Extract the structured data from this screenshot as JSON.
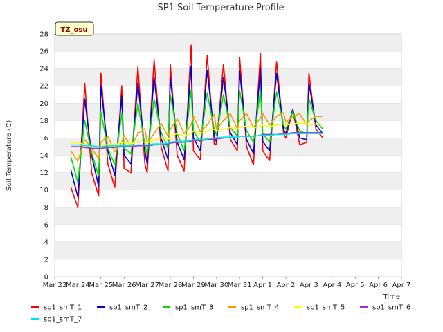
{
  "chart_data": {
    "type": "line",
    "title": "SP1 Soil Temperature Profile",
    "xlabel": "Time",
    "ylabel": "Soil Temperature (C)",
    "annotation": "TZ_osu",
    "ylim": [
      0,
      28
    ],
    "yticks": [
      0,
      2,
      4,
      6,
      8,
      10,
      12,
      14,
      16,
      18,
      20,
      22,
      24,
      26,
      28
    ],
    "xlim": [
      "Mar 23",
      "Apr 7"
    ],
    "xticks": [
      "Mar 23",
      "Mar 24",
      "Mar 25",
      "Mar 26",
      "Mar 27",
      "Mar 28",
      "Mar 29",
      "Mar 30",
      "Mar 31",
      "Apr 1",
      "Apr 2",
      "Apr 3",
      "Apr 4",
      "Apr 5",
      "Apr 6",
      "Apr 7"
    ],
    "grid": "horizontal bands",
    "legend_position": "bottom",
    "x_days": [
      0.7,
      1.0,
      1.3,
      1.6,
      1.9,
      2.0,
      2.3,
      2.6,
      2.9,
      3.0,
      3.3,
      3.6,
      3.9,
      4.0,
      4.3,
      4.6,
      4.9,
      5.0,
      5.3,
      5.6,
      5.9,
      6.0,
      6.3,
      6.6,
      6.9,
      7.0,
      7.3,
      7.6,
      7.9,
      8.0,
      8.3,
      8.6,
      8.9,
      9.0,
      9.3,
      9.6,
      9.9,
      10.0,
      10.3,
      10.6,
      10.9,
      11.0,
      11.3,
      11.6,
      11.9,
      12.0,
      12.3,
      12.6,
      12.9,
      13.0,
      13.3,
      13.6,
      13.9,
      14.0,
      14.3
    ],
    "series": [
      {
        "name": "sp1_smT_1",
        "color": "#ff0000",
        "values": [
          10.3,
          8.0,
          22.3,
          12.0,
          9.3,
          23.5,
          13.0,
          10.3,
          22.0,
          12.5,
          12.0,
          24.2,
          13.0,
          12.0,
          25.0,
          15.0,
          12.2,
          24.5,
          14.0,
          12.2,
          26.7,
          14.5,
          13.5,
          25.5,
          15.3,
          15.3,
          24.5,
          15.8,
          14.5,
          25.3,
          15.0,
          12.9,
          25.8,
          14.5,
          13.4,
          24.8,
          16.5,
          16.0,
          19.2,
          15.2,
          15.5,
          23.5,
          17.0,
          16.0,
          null,
          null,
          null,
          null,
          null,
          null,
          null,
          null,
          null,
          null,
          null
        ]
      },
      {
        "name": "sp1_smT_2",
        "color": "#0000cc",
        "values": [
          12.3,
          9.2,
          20.5,
          14.0,
          10.4,
          22.0,
          14.5,
          11.7,
          20.8,
          14.0,
          13.0,
          22.3,
          14.5,
          13.0,
          23.0,
          16.0,
          13.5,
          23.0,
          15.5,
          13.5,
          24.3,
          16.0,
          14.5,
          23.8,
          16.3,
          15.5,
          23.0,
          16.6,
          15.2,
          23.8,
          15.8,
          14.2,
          24.0,
          15.6,
          14.5,
          23.5,
          17.0,
          16.5,
          19.3,
          16.0,
          15.8,
          22.3,
          17.5,
          16.5,
          null,
          null,
          null,
          null,
          null,
          null,
          null,
          null,
          null,
          null,
          null
        ]
      },
      {
        "name": "sp1_smT_3",
        "color": "#00dd00",
        "values": [
          13.8,
          10.9,
          18.0,
          14.3,
          11.6,
          19.0,
          14.8,
          12.9,
          18.8,
          14.8,
          14.2,
          20.0,
          15.2,
          14.0,
          20.5,
          16.7,
          14.8,
          21.0,
          16.5,
          14.5,
          21.5,
          16.8,
          15.5,
          21.2,
          17.0,
          16.3,
          21.0,
          17.2,
          16.2,
          21.5,
          16.8,
          15.5,
          21.5,
          16.5,
          15.5,
          21.3,
          17.5,
          17.0,
          19.0,
          16.8,
          16.5,
          20.5,
          18.0,
          17.0,
          null,
          null,
          null,
          null,
          null,
          null,
          null,
          null,
          null,
          null,
          null
        ]
      },
      {
        "name": "sp1_smT_4",
        "color": "#ff9900",
        "values": [
          14.5,
          13.3,
          15.8,
          14.8,
          13.6,
          15.5,
          16.2,
          14.4,
          15.5,
          16.3,
          15.0,
          16.5,
          17.1,
          15.4,
          16.5,
          17.7,
          16.2,
          17.0,
          18.2,
          16.5,
          17.5,
          18.5,
          16.7,
          17.5,
          18.7,
          17.0,
          18.0,
          18.8,
          17.0,
          18.0,
          18.8,
          17.2,
          18.3,
          18.8,
          17.5,
          18.5,
          18.9,
          17.8,
          18.5,
          18.8,
          17.5,
          18.0,
          18.5,
          18.5,
          null,
          null,
          null,
          null,
          null,
          null,
          null,
          null,
          null,
          null,
          null
        ]
      },
      {
        "name": "sp1_smT_5",
        "color": "#ffff00",
        "values": [
          15.4,
          15.5,
          15.2,
          15.0,
          15.0,
          15.0,
          15.3,
          15.2,
          15.5,
          15.5,
          15.3,
          15.6,
          15.5,
          15.4,
          15.8,
          16.0,
          15.8,
          16.2,
          16.5,
          16.2,
          16.5,
          16.8,
          16.5,
          16.8,
          17.0,
          16.8,
          17.0,
          17.2,
          17.0,
          17.2,
          17.4,
          17.2,
          17.3,
          17.5,
          17.3,
          17.5,
          17.6,
          17.5,
          17.6,
          17.7,
          17.6,
          17.5,
          17.6,
          17.6,
          null,
          null,
          null,
          null,
          null,
          null,
          null,
          null,
          null,
          null,
          null
        ]
      },
      {
        "name": "sp1_smT_6",
        "color": "#9933cc",
        "values": [
          15.0,
          15.0,
          14.9,
          14.8,
          14.8,
          14.8,
          14.9,
          14.9,
          15.0,
          15.0,
          15.0,
          15.1,
          15.1,
          15.1,
          15.2,
          15.3,
          15.3,
          15.4,
          15.5,
          15.5,
          15.6,
          15.7,
          15.7,
          15.8,
          15.9,
          15.9,
          16.0,
          16.1,
          16.1,
          16.2,
          16.2,
          16.2,
          16.3,
          16.4,
          16.4,
          16.4,
          16.5,
          16.5,
          16.6,
          16.6,
          16.6,
          16.6,
          16.6,
          16.6,
          null,
          null,
          null,
          null,
          null,
          null,
          null,
          null,
          null,
          null,
          null
        ]
      },
      {
        "name": "sp1_smT_7",
        "color": "#00e5e5",
        "values": [
          15.2,
          15.2,
          15.1,
          15.1,
          15.0,
          15.0,
          15.1,
          15.1,
          15.1,
          15.1,
          15.1,
          15.2,
          15.2,
          15.2,
          15.3,
          15.3,
          15.4,
          15.5,
          15.6,
          15.6,
          15.7,
          15.8,
          15.8,
          15.9,
          16.0,
          16.0,
          16.1,
          16.1,
          16.1,
          16.2,
          16.2,
          16.2,
          16.3,
          16.3,
          16.3,
          16.4,
          16.4,
          16.4,
          16.5,
          16.5,
          16.5,
          16.5,
          16.5,
          16.5,
          null,
          null,
          null,
          null,
          null,
          null,
          null,
          null,
          null,
          null,
          null
        ]
      }
    ]
  },
  "colors": {
    "band": "#efefef",
    "background": "#ffffff",
    "tag_fill": "#ffffcc"
  }
}
